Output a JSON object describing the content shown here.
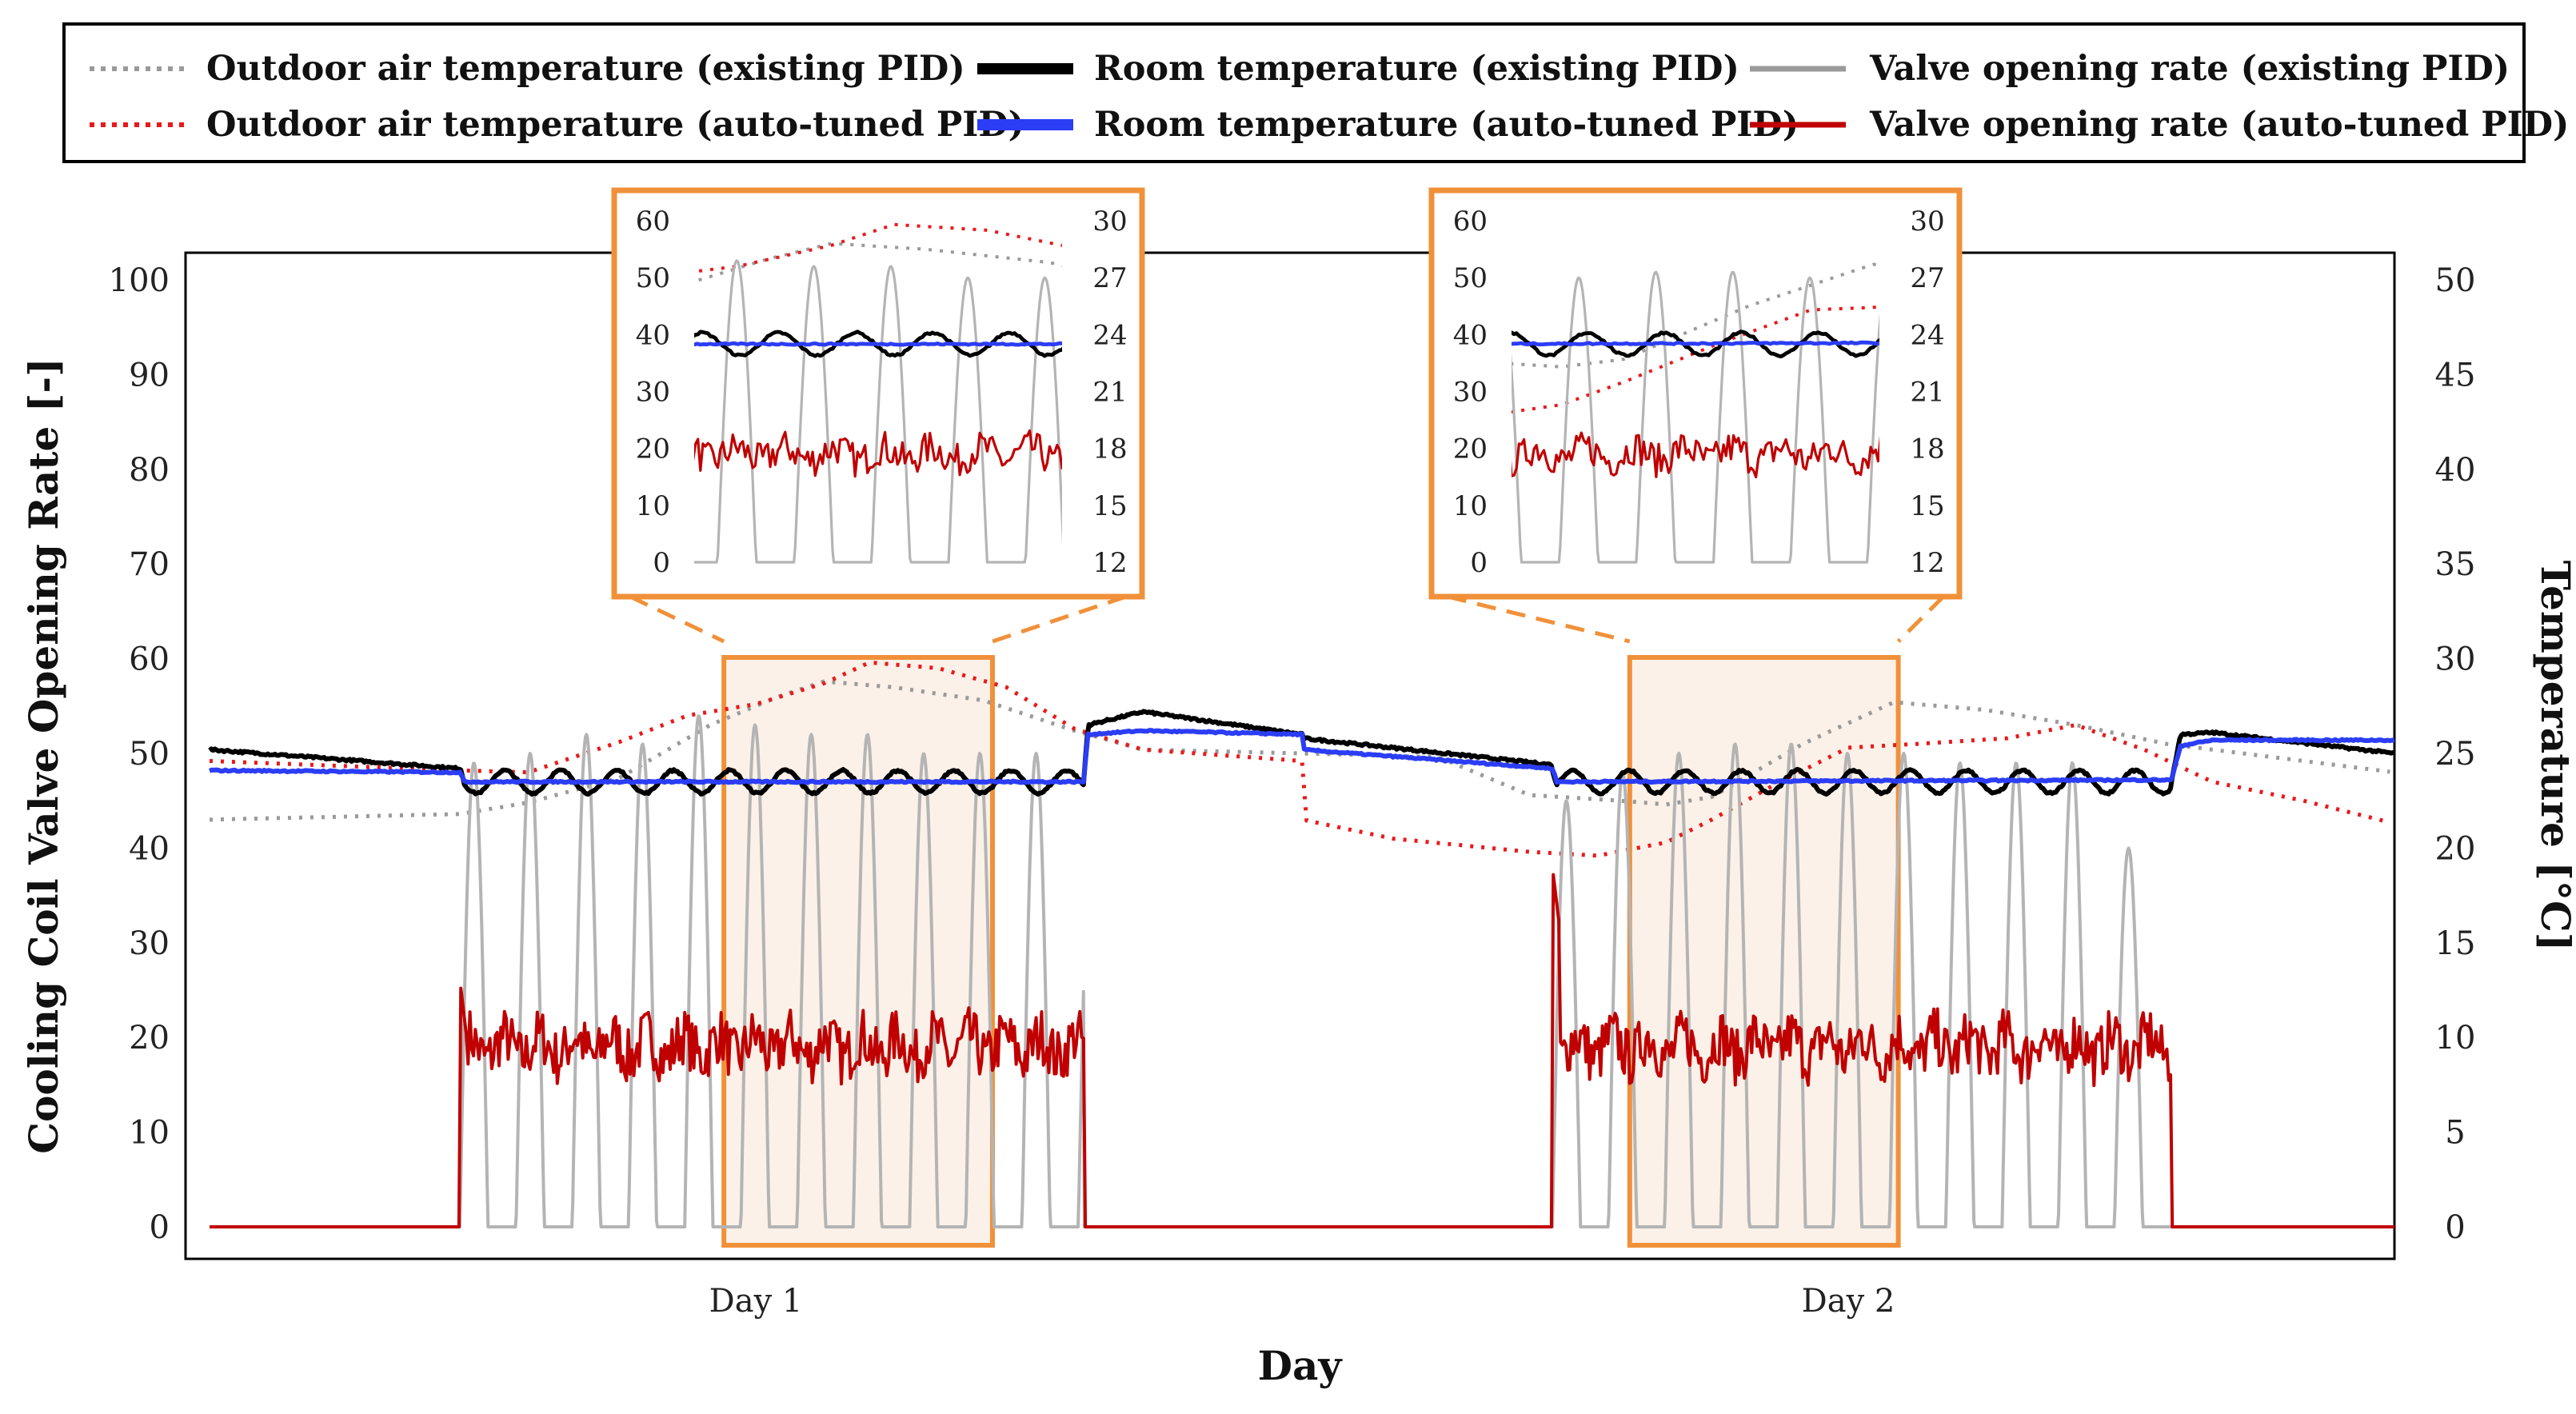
{
  "chart_data": {
    "type": "line",
    "xlabel": "Day",
    "ylabel_left": "Cooling Coil Valve Opening Rate [-]",
    "ylabel_right": "Temperature [°C]",
    "x_categories": [
      "Day 1",
      "Day 2"
    ],
    "x_range_hours": [
      0,
      48
    ],
    "ylim_left": [
      0,
      100
    ],
    "yticks_left": [
      0,
      10,
      20,
      30,
      40,
      50,
      60,
      70,
      80,
      90,
      100
    ],
    "ylim_right": [
      0,
      50
    ],
    "yticks_right": [
      0,
      5,
      10,
      15,
      20,
      25,
      30,
      35,
      40,
      45,
      50
    ],
    "legend": {
      "position": "top",
      "entries": [
        {
          "label": "Outdoor air temperature (existing PID)",
          "color": "#9a9a9a",
          "style": "dotted"
        },
        {
          "label": "Room temperature (existing PID)",
          "color": "#000000",
          "style": "solid"
        },
        {
          "label": "Valve opening rate (existing PID)",
          "color": "#9a9a9a",
          "style": "solid"
        },
        {
          "label": "Outdoor air temperature (auto-tuned PID)",
          "color": "#e8191b",
          "style": "dotted"
        },
        {
          "label": "Room temperature (auto-tuned PID)",
          "color": "#2b3df5",
          "style": "solid"
        },
        {
          "label": "Valve opening rate (auto-tuned PID)",
          "color": "#c00000",
          "style": "solid"
        }
      ]
    },
    "series": [
      {
        "name": "Outdoor air temperature (existing PID)",
        "axis": "right",
        "x": [
          0,
          5.5,
          7,
          9,
          11,
          12.5,
          13.5,
          15,
          17,
          19,
          20.5,
          24,
          27,
          29,
          31,
          32,
          33,
          35,
          37,
          39,
          41,
          43,
          46,
          48
        ],
        "y": [
          21.5,
          21.8,
          22.4,
          23.7,
          26.5,
          28.0,
          28.8,
          28.5,
          27.8,
          26.2,
          25.2,
          25.0,
          24.8,
          22.8,
          22.5,
          22.3,
          22.7,
          25.5,
          27.7,
          27.3,
          26.5,
          25.5,
          24.6,
          24.0
        ]
      },
      {
        "name": "Outdoor air temperature (auto-tuned PID)",
        "axis": "right",
        "x": [
          0,
          5.5,
          7,
          9,
          10.5,
          12,
          13.5,
          14.5,
          16,
          17.5,
          19,
          20.5,
          24,
          24.01,
          26,
          29,
          30.5,
          32,
          33,
          34.5,
          36,
          37.5,
          39.5,
          41,
          42.5,
          44,
          46,
          48
        ],
        "y": [
          24.6,
          24.1,
          24.0,
          25.6,
          27.0,
          27.6,
          28.7,
          29.8,
          29.5,
          28.5,
          26.3,
          25.2,
          24.6,
          21.5,
          20.5,
          19.8,
          19.6,
          20.3,
          21.5,
          23.5,
          25.3,
          25.5,
          25.8,
          26.5,
          25.2,
          23.5,
          22.5,
          21.3
        ]
      },
      {
        "name": "Valve opening rate (existing PID)",
        "axis": "left",
        "x_active": [
          [
            5.5,
            19.2
          ],
          [
            29.5,
            43.1
          ]
        ],
        "oscillation_peaks": [
          49,
          50,
          52,
          51,
          54,
          53,
          52,
          52,
          50,
          50,
          50,
          45,
          48,
          50,
          51,
          51,
          50,
          50,
          49,
          49,
          49,
          40
        ],
        "y_min": 0
      },
      {
        "name": "Valve opening rate (auto-tuned PID)",
        "axis": "left",
        "x_active": [
          [
            5.5,
            19.2
          ],
          [
            29.5,
            43.1
          ]
        ],
        "spike_at_start": [
          26,
          38
        ],
        "mean_when_active": 19,
        "noise_range": [
          14,
          27
        ],
        "y_off": 0
      },
      {
        "name": "Room temperature (existing PID)",
        "axis": "right",
        "x": [
          0,
          5.5,
          5.6,
          19.2,
          19.3,
          20.5,
          24,
          24.01,
          29.5,
          29.6,
          43.1,
          43.3,
          44,
          48
        ],
        "y": [
          25.2,
          24.2,
          23.5,
          23.5,
          26.5,
          27.2,
          26.0,
          25.8,
          24.4,
          23.5,
          23.5,
          26.0,
          26.1,
          25.0
        ],
        "oscillation_amplitude": 1.2
      },
      {
        "name": "Room temperature (auto-tuned PID)",
        "axis": "right",
        "x": [
          0,
          5.5,
          5.6,
          19.2,
          19.3,
          20.5,
          24,
          24.01,
          29.5,
          29.6,
          43.1,
          43.3,
          44,
          48
        ],
        "y": [
          24.1,
          24.0,
          23.5,
          23.5,
          26.0,
          26.2,
          26.0,
          25.2,
          24.2,
          23.5,
          23.6,
          25.4,
          25.7,
          25.7
        ]
      }
    ],
    "highlight_windows": [
      {
        "x_range": [
          11.3,
          17.2
        ]
      },
      {
        "x_range": [
          31.2,
          37.1
        ]
      }
    ],
    "insets": [
      {
        "yticks_left": [
          0,
          10,
          20,
          30,
          40,
          50,
          60
        ],
        "ylim_left": [
          0,
          60
        ],
        "yticks_right": [
          12,
          15,
          18,
          21,
          24,
          27,
          30
        ],
        "ylim_right": [
          12,
          30
        ]
      },
      {
        "yticks_left": [
          0,
          10,
          20,
          30,
          40,
          50,
          60
        ],
        "ylim_left": [
          0,
          60
        ],
        "yticks_right": [
          12,
          15,
          18,
          21,
          24,
          27,
          30
        ],
        "ylim_right": [
          12,
          30
        ]
      }
    ]
  },
  "colors": {
    "outdoor_existing": "#9a9a9a",
    "outdoor_auto": "#e8191b",
    "room_existing": "#000000",
    "room_auto": "#2b3df5",
    "valve_existing": "#9a9a9a",
    "valve_auto": "#c00000",
    "highlight_border": "#f0913a",
    "highlight_fill": "#fbf1e8"
  }
}
